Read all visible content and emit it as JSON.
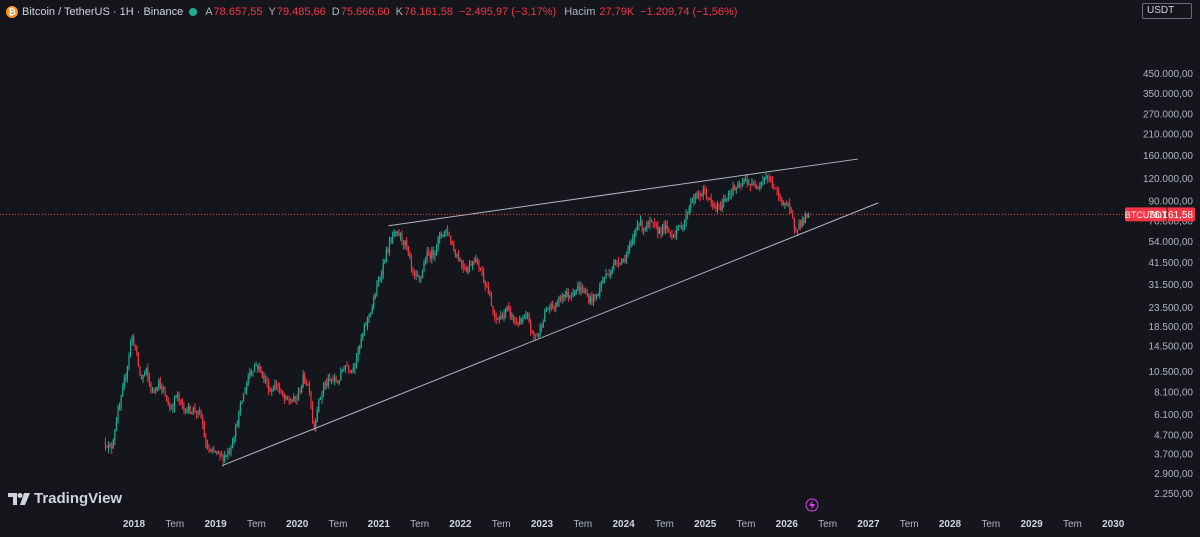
{
  "header": {
    "coin_glyph": "₿",
    "title": "Bitcoin / TetherUS · 1H · Binance",
    "open_label": "A",
    "open": "78.657,55",
    "high_label": "Y",
    "high": "79.485,66",
    "low_label": "D",
    "low": "75.666,60",
    "close_label": "K",
    "close": "76.161,58",
    "change": "−2.495,97 (−3,17%)",
    "volume_label": "Hacim",
    "volume": "27,79K",
    "volume_change": "−1.209,74 (−1,56%)",
    "status_color": "#22ab94"
  },
  "currency_button": "USDT",
  "logo_text": "TradingView",
  "chart_data": {
    "type": "candlestick",
    "y_scale": "log",
    "colors": {
      "up": "#22ab94",
      "down": "#f23645",
      "trendline": "#b2b5be",
      "price_line": "#f23645"
    },
    "y_ticks": [
      {
        "value": 450000,
        "label": "450.000,00"
      },
      {
        "value": 350000,
        "label": "350.000,00"
      },
      {
        "value": 270000,
        "label": "270.000,00"
      },
      {
        "value": 210000,
        "label": "210.000,00"
      },
      {
        "value": 160000,
        "label": "160.000,00"
      },
      {
        "value": 120000,
        "label": "120.000,00"
      },
      {
        "value": 90000,
        "label": "90.000,00"
      },
      {
        "value": 70000,
        "label": "70.000,00"
      },
      {
        "value": 54000,
        "label": "54.000,00"
      },
      {
        "value": 41500,
        "label": "41.500,00"
      },
      {
        "value": 31500,
        "label": "31.500,00"
      },
      {
        "value": 23500,
        "label": "23.500,00"
      },
      {
        "value": 18500,
        "label": "18.500,00"
      },
      {
        "value": 14500,
        "label": "14.500,00"
      },
      {
        "value": 10500,
        "label": "10.500,00"
      },
      {
        "value": 8100,
        "label": "8.100,00"
      },
      {
        "value": 6100,
        "label": "6.100,00"
      },
      {
        "value": 4700,
        "label": "4.700,00"
      },
      {
        "value": 3700,
        "label": "3.700,00"
      },
      {
        "value": 2900,
        "label": "2.900,00"
      },
      {
        "value": 2250,
        "label": "2.250,00"
      }
    ],
    "x_ticks": [
      {
        "t": 2018.0,
        "label": "2018",
        "bold": true
      },
      {
        "t": 2018.5,
        "label": "Tem",
        "bold": false
      },
      {
        "t": 2019.0,
        "label": "2019",
        "bold": true
      },
      {
        "t": 2019.5,
        "label": "Tem",
        "bold": false
      },
      {
        "t": 2020.0,
        "label": "2020",
        "bold": true
      },
      {
        "t": 2020.5,
        "label": "Tem",
        "bold": false
      },
      {
        "t": 2021.0,
        "label": "2021",
        "bold": true
      },
      {
        "t": 2021.5,
        "label": "Tem",
        "bold": false
      },
      {
        "t": 2022.0,
        "label": "2022",
        "bold": true
      },
      {
        "t": 2022.5,
        "label": "Tem",
        "bold": false
      },
      {
        "t": 2023.0,
        "label": "2023",
        "bold": true
      },
      {
        "t": 2023.5,
        "label": "Tem",
        "bold": false
      },
      {
        "t": 2024.0,
        "label": "2024",
        "bold": true
      },
      {
        "t": 2024.5,
        "label": "Tem",
        "bold": false
      },
      {
        "t": 2025.0,
        "label": "2025",
        "bold": true
      },
      {
        "t": 2025.5,
        "label": "Tem",
        "bold": false
      },
      {
        "t": 2026.0,
        "label": "2026",
        "bold": true
      },
      {
        "t": 2026.5,
        "label": "Tem",
        "bold": false
      },
      {
        "t": 2027.0,
        "label": "2027",
        "bold": true
      },
      {
        "t": 2027.5,
        "label": "Tem",
        "bold": false
      },
      {
        "t": 2028.0,
        "label": "2028",
        "bold": true
      },
      {
        "t": 2028.5,
        "label": "Tem",
        "bold": false
      },
      {
        "t": 2029.0,
        "label": "2029",
        "bold": true
      },
      {
        "t": 2029.5,
        "label": "Tem",
        "bold": false
      },
      {
        "t": 2030.0,
        "label": "2030",
        "bold": true
      }
    ],
    "price_label": {
      "symbol": "BTCUSDT",
      "value": 76161.58,
      "text": "76.161,58"
    },
    "trendlines": [
      {
        "name": "upper",
        "points": [
          [
            2021.12,
            66000
          ],
          [
            2026.87,
            153000
          ]
        ]
      },
      {
        "name": "lower",
        "points": [
          [
            2019.08,
            3200
          ],
          [
            2027.12,
            88000
          ]
        ]
      }
    ],
    "price_path": [
      [
        2017.65,
        4300
      ],
      [
        2017.72,
        3900
      ],
      [
        2017.78,
        5600
      ],
      [
        2017.85,
        7600
      ],
      [
        2017.92,
        11500
      ],
      [
        2017.97,
        16500
      ],
      [
        2018.02,
        14000
      ],
      [
        2018.08,
        9500
      ],
      [
        2018.15,
        10500
      ],
      [
        2018.22,
        8000
      ],
      [
        2018.3,
        9300
      ],
      [
        2018.38,
        7600
      ],
      [
        2018.45,
        6500
      ],
      [
        2018.52,
        7800
      ],
      [
        2018.6,
        6600
      ],
      [
        2018.68,
        6500
      ],
      [
        2018.75,
        6450
      ],
      [
        2018.83,
        5800
      ],
      [
        2018.88,
        4100
      ],
      [
        2018.95,
        3700
      ],
      [
        2019.0,
        3800
      ],
      [
        2019.08,
        3500
      ],
      [
        2019.17,
        3900
      ],
      [
        2019.25,
        5200
      ],
      [
        2019.33,
        7500
      ],
      [
        2019.42,
        10500
      ],
      [
        2019.5,
        11500
      ],
      [
        2019.58,
        10000
      ],
      [
        2019.67,
        8200
      ],
      [
        2019.75,
        9000
      ],
      [
        2019.83,
        7400
      ],
      [
        2019.92,
        7200
      ],
      [
        2020.0,
        7500
      ],
      [
        2020.08,
        9800
      ],
      [
        2020.15,
        8500
      ],
      [
        2020.2,
        5000
      ],
      [
        2020.25,
        6800
      ],
      [
        2020.33,
        8800
      ],
      [
        2020.42,
        9500
      ],
      [
        2020.5,
        9200
      ],
      [
        2020.58,
        11500
      ],
      [
        2020.67,
        10800
      ],
      [
        2020.75,
        13500
      ],
      [
        2020.83,
        18500
      ],
      [
        2020.92,
        24000
      ],
      [
        2021.0,
        33000
      ],
      [
        2021.08,
        45000
      ],
      [
        2021.17,
        58000
      ],
      [
        2021.25,
        59000
      ],
      [
        2021.33,
        52000
      ],
      [
        2021.42,
        35000
      ],
      [
        2021.5,
        33000
      ],
      [
        2021.58,
        45000
      ],
      [
        2021.67,
        47000
      ],
      [
        2021.75,
        58000
      ],
      [
        2021.83,
        63000
      ],
      [
        2021.92,
        49000
      ],
      [
        2022.0,
        42000
      ],
      [
        2022.08,
        38000
      ],
      [
        2022.17,
        44000
      ],
      [
        2022.25,
        38000
      ],
      [
        2022.33,
        30000
      ],
      [
        2022.42,
        20000
      ],
      [
        2022.5,
        21000
      ],
      [
        2022.58,
        23000
      ],
      [
        2022.67,
        19500
      ],
      [
        2022.75,
        19500
      ],
      [
        2022.83,
        21000
      ],
      [
        2022.88,
        16500
      ],
      [
        2022.95,
        16600
      ],
      [
        2023.05,
        23000
      ],
      [
        2023.17,
        24000
      ],
      [
        2023.25,
        28000
      ],
      [
        2023.33,
        27500
      ],
      [
        2023.42,
        30000
      ],
      [
        2023.5,
        29500
      ],
      [
        2023.58,
        26000
      ],
      [
        2023.67,
        27000
      ],
      [
        2023.75,
        34000
      ],
      [
        2023.83,
        37000
      ],
      [
        2023.92,
        42500
      ],
      [
        2024.0,
        43000
      ],
      [
        2024.1,
        52000
      ],
      [
        2024.17,
        70000
      ],
      [
        2024.25,
        64000
      ],
      [
        2024.33,
        68000
      ],
      [
        2024.42,
        62000
      ],
      [
        2024.5,
        65000
      ],
      [
        2024.58,
        59000
      ],
      [
        2024.67,
        63000
      ],
      [
        2024.75,
        70000
      ],
      [
        2024.83,
        92000
      ],
      [
        2024.92,
        96000
      ],
      [
        2025.0,
        102000
      ],
      [
        2025.08,
        84000
      ],
      [
        2025.17,
        82000
      ],
      [
        2025.25,
        94000
      ],
      [
        2025.33,
        104000
      ],
      [
        2025.42,
        107000
      ],
      [
        2025.5,
        118000
      ],
      [
        2025.58,
        108000
      ],
      [
        2025.67,
        114000
      ],
      [
        2025.75,
        124000
      ],
      [
        2025.83,
        110000
      ],
      [
        2025.92,
        91000
      ],
      [
        2026.0,
        87000
      ],
      [
        2026.05,
        76000
      ],
      [
        2026.1,
        64000
      ],
      [
        2026.15,
        67000
      ],
      [
        2026.22,
        72000
      ],
      [
        2026.28,
        76161
      ]
    ]
  }
}
